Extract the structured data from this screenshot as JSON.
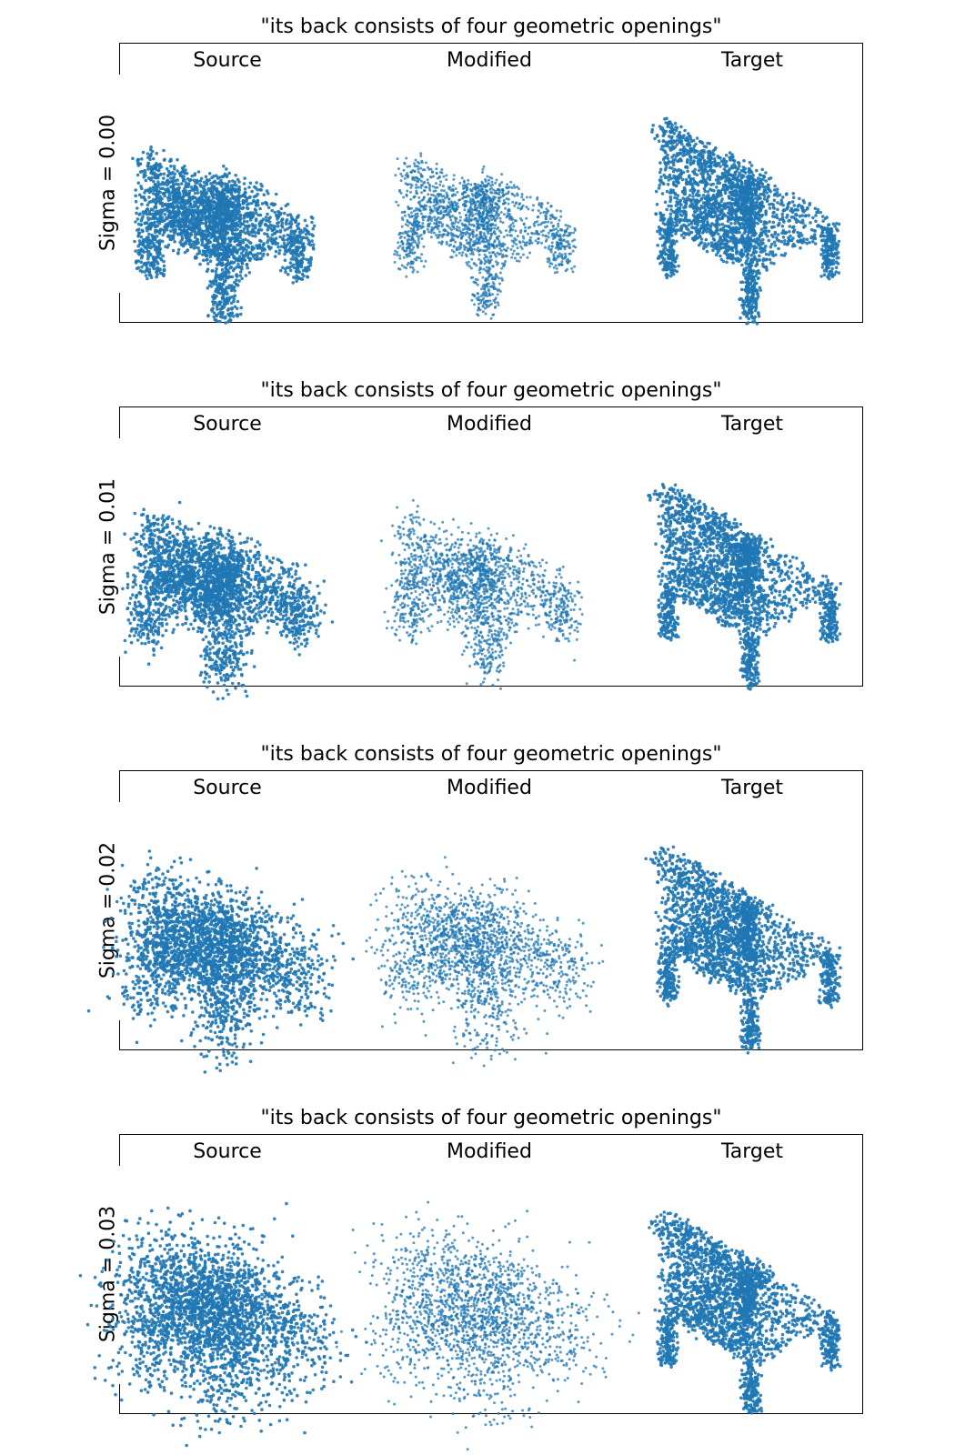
{
  "column_labels": [
    "Source",
    "Modified",
    "Target"
  ],
  "point_color": "#1f77b4",
  "panels": [
    {
      "title": "\"its back consists of four geometric openings\"",
      "row_label": "Sigma = 0.00",
      "sigma": 0.0
    },
    {
      "title": "\"its back consists of four geometric openings\"",
      "row_label": "Sigma = 0.01",
      "sigma": 0.01
    },
    {
      "title": "\"its back consists of four geometric openings\"",
      "row_label": "Sigma = 0.02",
      "sigma": 0.02
    },
    {
      "title": "\"its back consists of four geometric openings\"",
      "row_label": "Sigma = 0.03",
      "sigma": 0.03
    }
  ]
}
